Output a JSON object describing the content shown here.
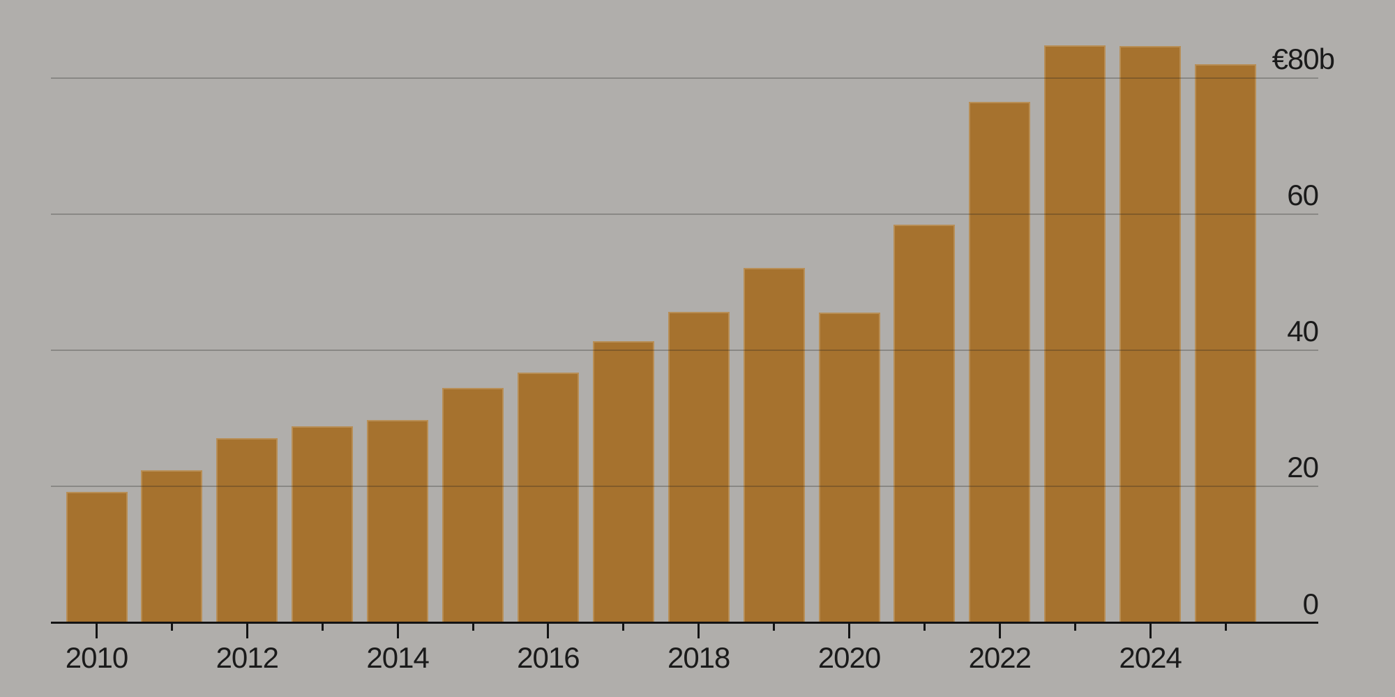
{
  "chart_data": {
    "type": "bar",
    "title": "",
    "categories": [
      2010,
      2011,
      2012,
      2013,
      2014,
      2015,
      2016,
      2017,
      2018,
      2019,
      2020,
      2021,
      2022,
      2023,
      2024,
      2025
    ],
    "values": [
      19.2,
      22.4,
      27.1,
      28.8,
      29.8,
      34.5,
      36.7,
      41.3,
      45.6,
      52.1,
      45.5,
      58.4,
      76.5,
      84.8,
      84.7,
      82.0
    ],
    "value_unit": "billion euros",
    "xlabel": "",
    "ylabel": "",
    "ylim": [
      0,
      91
    ],
    "grid": "horizontal",
    "legend": "none",
    "y_ticks": [
      {
        "value": 0,
        "label": "0"
      },
      {
        "value": 20,
        "label": "20"
      },
      {
        "value": 40,
        "label": "40"
      },
      {
        "value": 60,
        "label": "60"
      },
      {
        "value": 80,
        "label": "€80b"
      }
    ],
    "x_major_tick_years": [
      2010,
      2012,
      2014,
      2016,
      2018,
      2020,
      2022,
      2024
    ],
    "x_minor_tick_years": [
      2011,
      2013,
      2015,
      2017,
      2019,
      2021,
      2023,
      2025
    ],
    "colors": {
      "bar": "#a6722e",
      "background": "#b0aeab",
      "gridline": "#8c8b88",
      "axis": "#141414",
      "text": "#1a1a1a"
    }
  }
}
